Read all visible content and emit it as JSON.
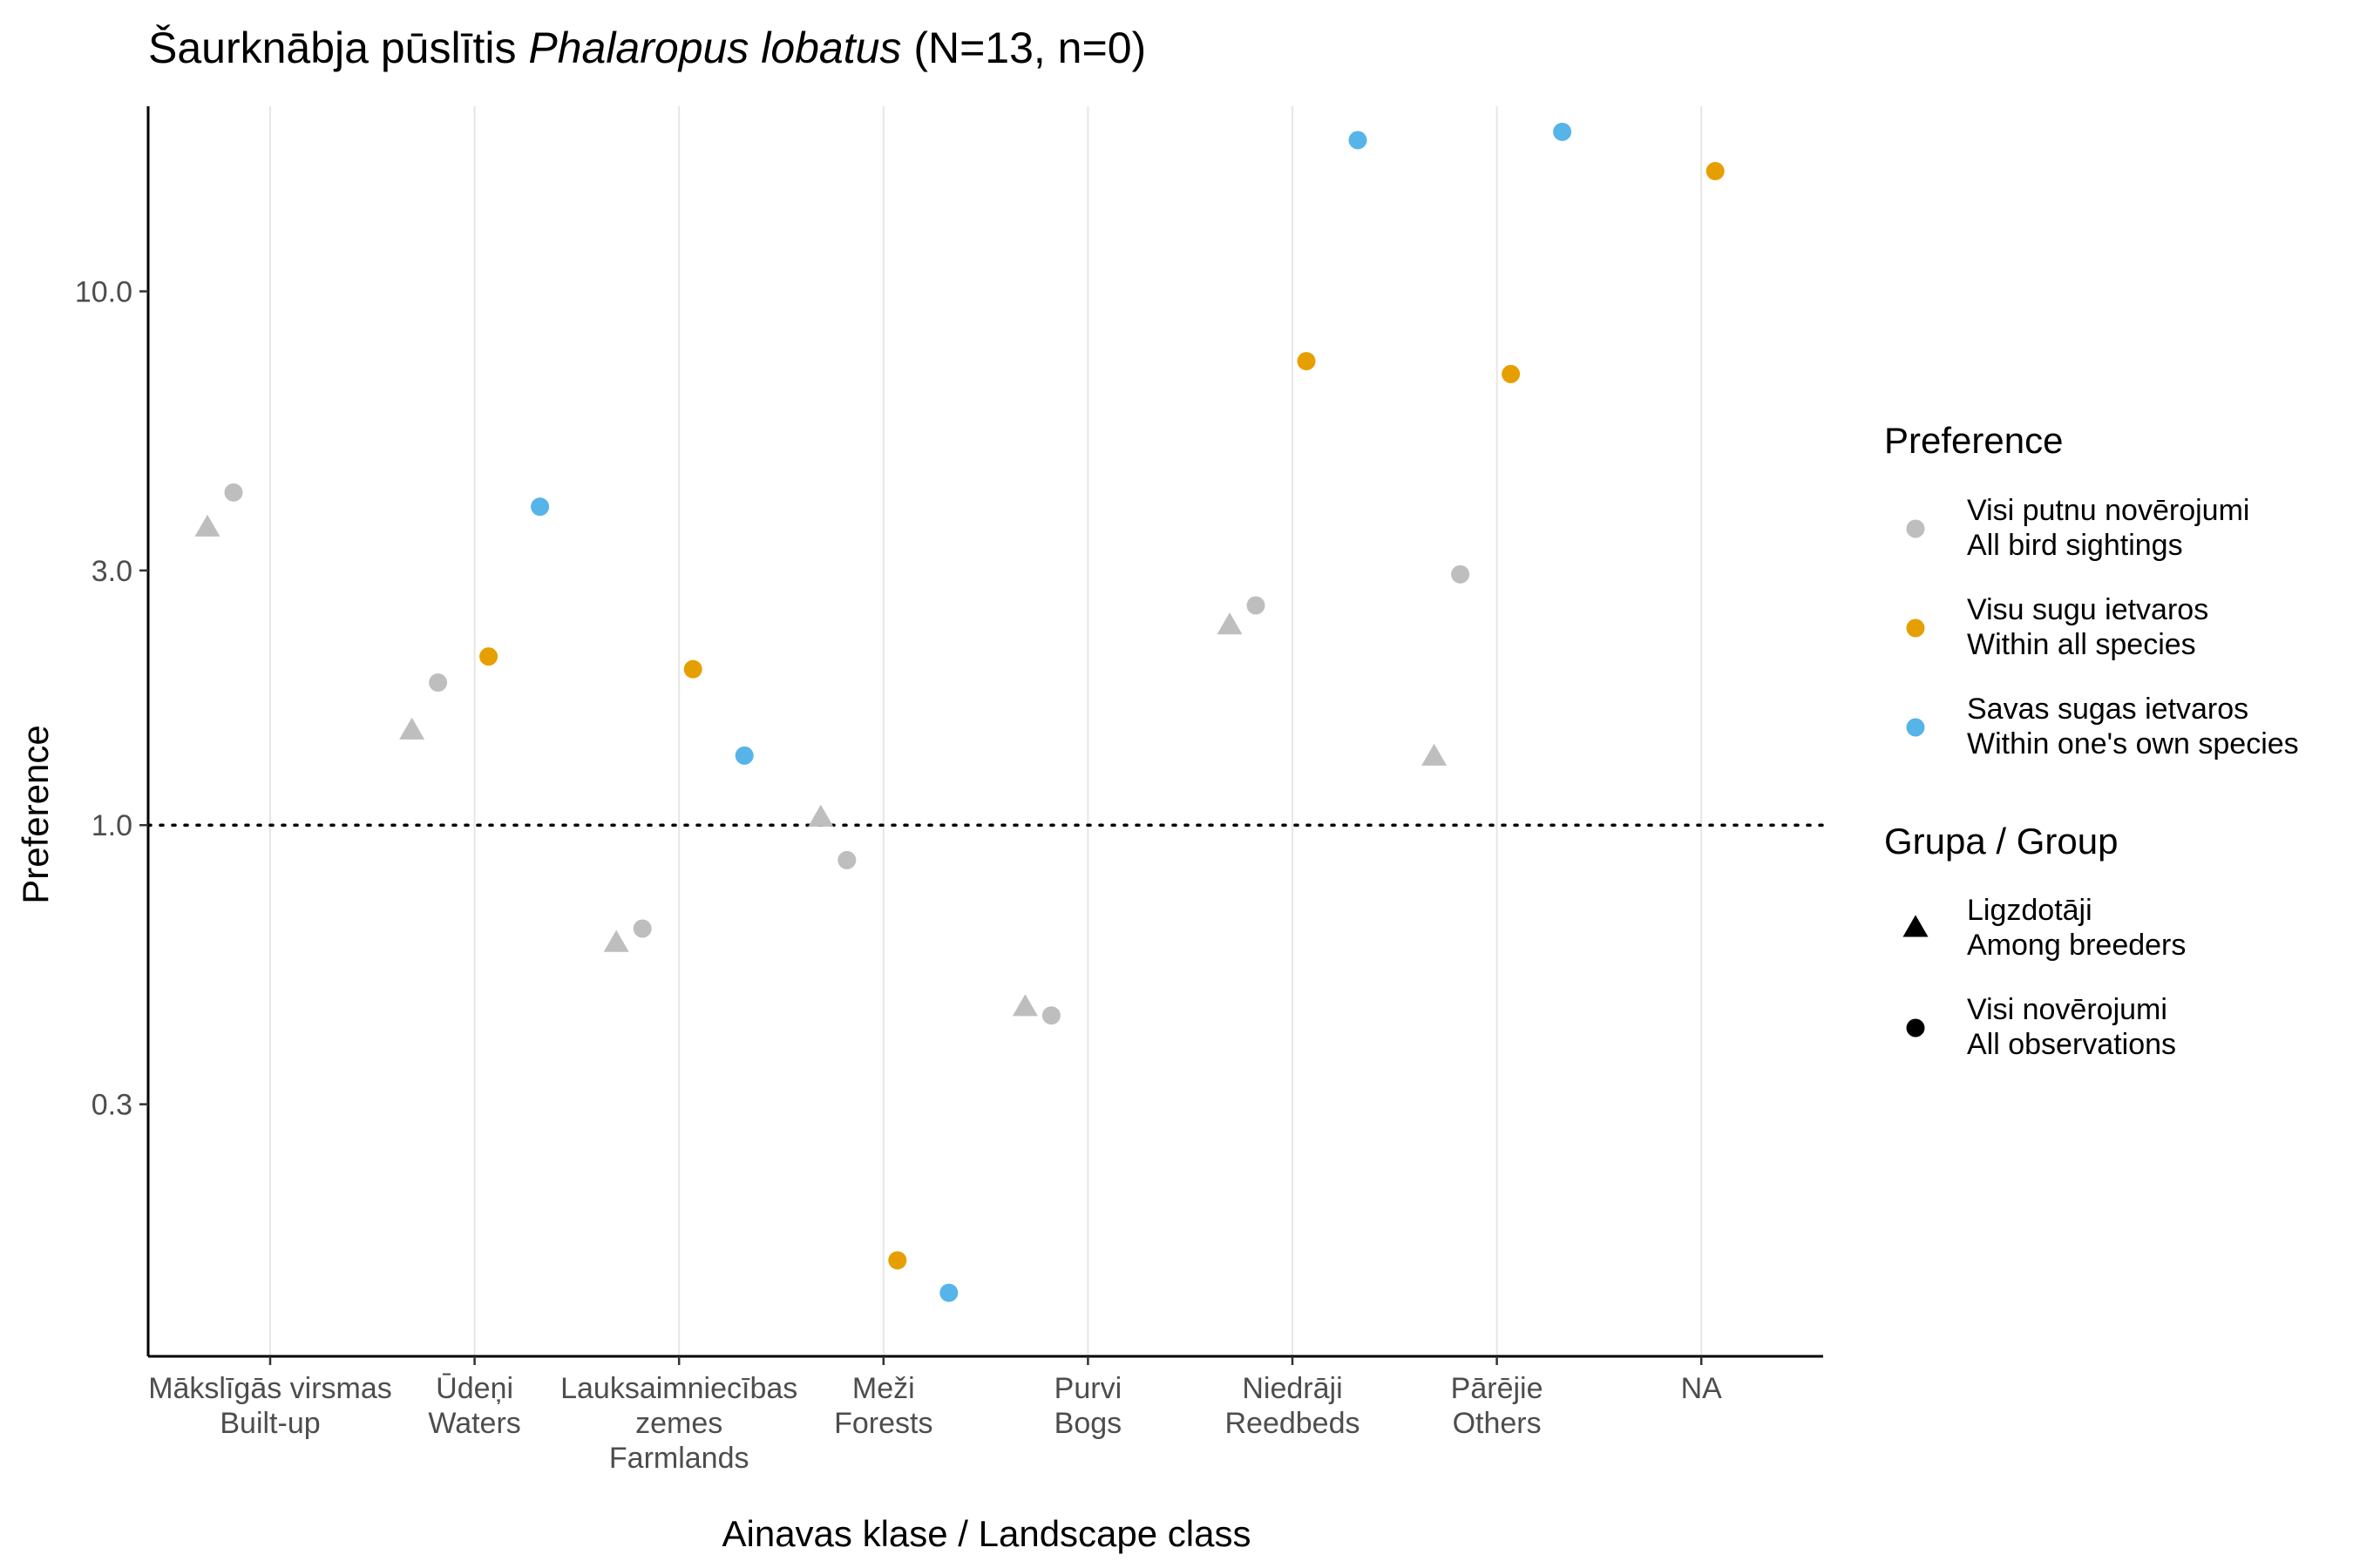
{
  "chart_data": {
    "type": "scatter",
    "title": {
      "prefix": "Šaurknābja pūslītis ",
      "italic": "Phalaropus lobatus",
      "suffix": " (N=13, n=0)"
    },
    "xlabel": "Ainavas klase / Landscape class",
    "ylabel": "Preference",
    "y_scale": "log10",
    "ylim": [
      0.1,
      20
    ],
    "y_ticks": [
      {
        "value": 0.3,
        "label": "0.3"
      },
      {
        "value": 1.0,
        "label": "1.0"
      },
      {
        "value": 3.0,
        "label": "3.0"
      },
      {
        "value": 10.0,
        "label": "10.0"
      }
    ],
    "reference_line": {
      "y": 1.0,
      "style": "dotted"
    },
    "categories": [
      {
        "label_lv": "Mākslīgās virsmas",
        "label_en": "Built-up",
        "label_extra": ""
      },
      {
        "label_lv": "Ūdeņi",
        "label_en": "Waters",
        "label_extra": ""
      },
      {
        "label_lv": "Lauksaimniecības",
        "label_en": "zemes",
        "label_extra": "Farmlands"
      },
      {
        "label_lv": "Meži",
        "label_en": "Forests",
        "label_extra": ""
      },
      {
        "label_lv": "Purvi",
        "label_en": "Bogs",
        "label_extra": ""
      },
      {
        "label_lv": "Niedrāji",
        "label_en": "Reedbeds",
        "label_extra": ""
      },
      {
        "label_lv": "Pārējie",
        "label_en": "Others",
        "label_extra": ""
      },
      {
        "label_lv": "NA",
        "label_en": "",
        "label_extra": ""
      }
    ],
    "grid": {
      "vertical_major": true,
      "horizontal": false
    },
    "colors": {
      "all_birds": "#BEBEBE",
      "all_species": "#E69F00",
      "own_species": "#56B4E9"
    },
    "points": [
      {
        "category": 0,
        "preference": "all_birds",
        "group": "breeders",
        "y": 3.6
      },
      {
        "category": 0,
        "preference": "all_birds",
        "group": "all",
        "y": 4.2
      },
      {
        "category": 1,
        "preference": "all_birds",
        "group": "breeders",
        "y": 1.5
      },
      {
        "category": 1,
        "preference": "all_birds",
        "group": "all",
        "y": 1.85
      },
      {
        "category": 1,
        "preference": "all_species",
        "group": "all",
        "y": 2.07
      },
      {
        "category": 1,
        "preference": "own_species",
        "group": "all",
        "y": 3.95
      },
      {
        "category": 2,
        "preference": "all_birds",
        "group": "breeders",
        "y": 0.6
      },
      {
        "category": 2,
        "preference": "all_birds",
        "group": "all",
        "y": 0.64
      },
      {
        "category": 2,
        "preference": "all_species",
        "group": "all",
        "y": 1.96
      },
      {
        "category": 2,
        "preference": "own_species",
        "group": "all",
        "y": 1.35
      },
      {
        "category": 3,
        "preference": "all_birds",
        "group": "breeders",
        "y": 1.03
      },
      {
        "category": 3,
        "preference": "all_birds",
        "group": "all",
        "y": 0.86
      },
      {
        "category": 3,
        "preference": "all_species",
        "group": "all",
        "y": 0.153
      },
      {
        "category": 3,
        "preference": "own_species",
        "group": "all",
        "y": 0.133
      },
      {
        "category": 4,
        "preference": "all_birds",
        "group": "breeders",
        "y": 0.455
      },
      {
        "category": 4,
        "preference": "all_birds",
        "group": "all",
        "y": 0.44
      },
      {
        "category": 5,
        "preference": "all_birds",
        "group": "breeders",
        "y": 2.36
      },
      {
        "category": 5,
        "preference": "all_birds",
        "group": "all",
        "y": 2.58
      },
      {
        "category": 5,
        "preference": "all_species",
        "group": "all",
        "y": 7.4
      },
      {
        "category": 5,
        "preference": "own_species",
        "group": "all",
        "y": 19.2
      },
      {
        "category": 6,
        "preference": "all_birds",
        "group": "breeders",
        "y": 1.34
      },
      {
        "category": 6,
        "preference": "all_birds",
        "group": "all",
        "y": 2.95
      },
      {
        "category": 6,
        "preference": "all_species",
        "group": "all",
        "y": 7.0
      },
      {
        "category": 6,
        "preference": "own_species",
        "group": "all",
        "y": 19.9
      },
      {
        "category": 7,
        "preference": "all_species",
        "group": "all",
        "y": 16.8
      }
    ],
    "legend": {
      "placement": "right",
      "preference_title": "Preference",
      "preference_items": [
        {
          "key": "all_birds",
          "line1": "Visi putnu novērojumi",
          "line2": "All bird sightings"
        },
        {
          "key": "all_species",
          "line1": "Visu sugu ietvaros",
          "line2": "Within all species"
        },
        {
          "key": "own_species",
          "line1": "Savas sugas ietvaros",
          "line2": "Within one's own species"
        }
      ],
      "group_title": "Grupa / Group",
      "group_items": [
        {
          "key": "breeders",
          "shape": "triangle",
          "line1": "Ligzdotāji",
          "line2": "Among breeders"
        },
        {
          "key": "all",
          "shape": "circle",
          "line1": "Visi novērojumi",
          "line2": "All observations"
        }
      ]
    }
  }
}
